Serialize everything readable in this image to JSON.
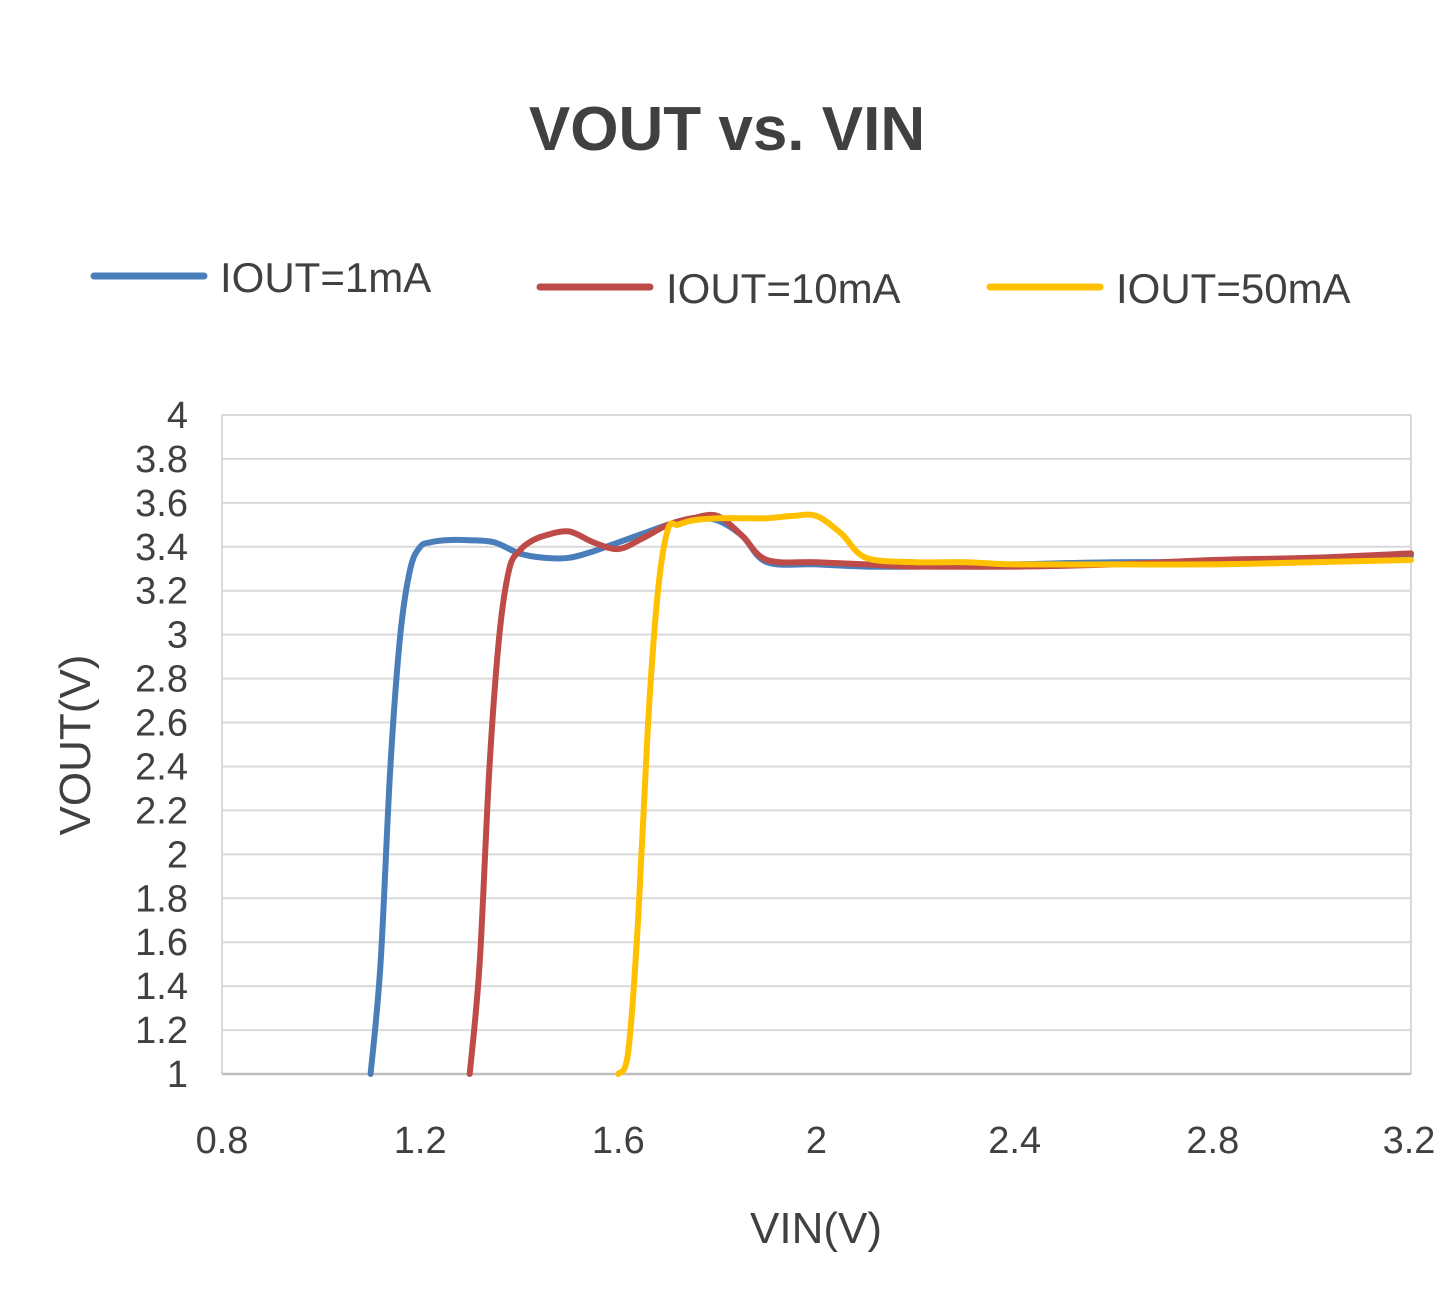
{
  "chart_data": {
    "type": "line",
    "title": "VOUT vs. VIN",
    "xlabel": "VIN(V)",
    "ylabel": "VOUT(V)",
    "xlim": [
      0.8,
      3.2
    ],
    "ylim": [
      1,
      4
    ],
    "xticks": [
      "0.8",
      "1.2",
      "1.6",
      "2",
      "2.4",
      "2.8",
      "3.2"
    ],
    "yticks": [
      "1",
      "1.2",
      "1.4",
      "1.6",
      "1.8",
      "2",
      "2.2",
      "2.4",
      "2.6",
      "2.8",
      "3",
      "3.2",
      "3.4",
      "3.6",
      "3.8",
      "4"
    ],
    "grid": true,
    "legend_position": "top",
    "series": [
      {
        "name": "IOUT=1mA",
        "color": "#4a7ebb",
        "x": [
          1.1,
          1.12,
          1.14,
          1.16,
          1.18,
          1.2,
          1.22,
          1.25,
          1.3,
          1.35,
          1.4,
          1.45,
          1.5,
          1.55,
          1.6,
          1.65,
          1.7,
          1.75,
          1.8,
          1.85,
          1.9,
          2.0,
          2.1,
          2.2,
          2.4,
          2.6,
          2.8,
          3.0,
          3.2
        ],
        "y": [
          1.0,
          1.5,
          2.4,
          3.0,
          3.3,
          3.4,
          3.42,
          3.43,
          3.43,
          3.42,
          3.37,
          3.35,
          3.35,
          3.38,
          3.42,
          3.46,
          3.5,
          3.53,
          3.52,
          3.45,
          3.33,
          3.32,
          3.31,
          3.31,
          3.32,
          3.33,
          3.33,
          3.34,
          3.36
        ]
      },
      {
        "name": "IOUT=10mA",
        "color": "#be4b48",
        "x": [
          1.3,
          1.32,
          1.34,
          1.36,
          1.38,
          1.4,
          1.42,
          1.45,
          1.5,
          1.55,
          1.6,
          1.65,
          1.7,
          1.75,
          1.8,
          1.85,
          1.9,
          2.0,
          2.1,
          2.2,
          2.4,
          2.6,
          2.8,
          3.0,
          3.2
        ],
        "y": [
          1.0,
          1.5,
          2.4,
          3.0,
          3.3,
          3.38,
          3.42,
          3.45,
          3.47,
          3.42,
          3.39,
          3.44,
          3.5,
          3.53,
          3.54,
          3.45,
          3.34,
          3.33,
          3.32,
          3.31,
          3.31,
          3.32,
          3.34,
          3.35,
          3.37
        ]
      },
      {
        "name": "IOUT=50mA",
        "color": "#ffc000",
        "x": [
          1.6,
          1.62,
          1.64,
          1.66,
          1.68,
          1.7,
          1.72,
          1.75,
          1.8,
          1.85,
          1.9,
          1.95,
          2.0,
          2.05,
          2.1,
          2.2,
          2.3,
          2.4,
          2.6,
          2.8,
          3.0,
          3.2
        ],
        "y": [
          1.0,
          1.1,
          1.7,
          2.6,
          3.2,
          3.48,
          3.5,
          3.52,
          3.53,
          3.53,
          3.53,
          3.54,
          3.54,
          3.46,
          3.35,
          3.33,
          3.33,
          3.32,
          3.32,
          3.32,
          3.33,
          3.34
        ]
      }
    ]
  }
}
